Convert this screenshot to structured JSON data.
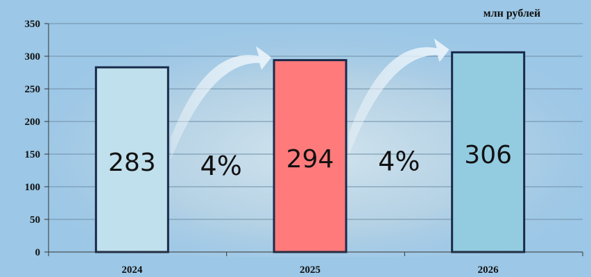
{
  "chart_data": {
    "type": "bar",
    "categories": [
      "2024",
      "2025",
      "2026"
    ],
    "values": [
      283,
      294,
      306
    ],
    "bar_labels": [
      "283",
      "294",
      "306"
    ],
    "growth_labels": [
      "4%",
      "4%"
    ],
    "unit_label": "млн рублей",
    "ylim": [
      0,
      350
    ],
    "yticks": [
      0,
      50,
      100,
      150,
      200,
      250,
      300,
      350
    ],
    "ytick_labels": [
      "0",
      "50",
      "100",
      "150",
      "200",
      "250",
      "300",
      "350"
    ],
    "grid": true,
    "bar_colors": [
      "#bfe0ec",
      "#ff7b7b",
      "#93cce0"
    ],
    "bar_border_color": "#1a2a4a",
    "gridline_color": "#6f8fa8",
    "background_color": "#9cc7e6"
  }
}
